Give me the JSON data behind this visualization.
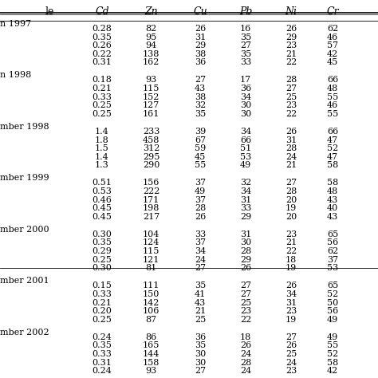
{
  "columns": [
    "le",
    "Cd",
    "Zn",
    "Cu",
    "Pb",
    "Ni",
    "Cr"
  ],
  "col_headers": [
    "le",
    "Cd",
    "Zn",
    "Cu",
    "Pb",
    "Ni",
    "Cr"
  ],
  "sections": [
    {
      "label": "n 1997",
      "rows": [
        [
          "",
          "0.28",
          "82",
          "26",
          "16",
          "26",
          "62"
        ],
        [
          "",
          "0.35",
          "95",
          "31",
          "35",
          "29",
          "46"
        ],
        [
          "",
          "0.26",
          "94",
          "29",
          "27",
          "23",
          "57"
        ],
        [
          "",
          "0.22",
          "138",
          "38",
          "35",
          "21",
          "42"
        ],
        [
          "",
          "0.31",
          "162",
          "36",
          "33",
          "22",
          "45"
        ]
      ]
    },
    {
      "label": "n 1998",
      "rows": [
        [
          "",
          "0.18",
          "93",
          "27",
          "17",
          "28",
          "66"
        ],
        [
          "",
          "0.21",
          "115",
          "43",
          "36",
          "27",
          "48"
        ],
        [
          "",
          "0.33",
          "152",
          "38",
          "34",
          "25",
          "55"
        ],
        [
          "",
          "0.25",
          "127",
          "32",
          "30",
          "23",
          "46"
        ],
        [
          "",
          "0.25",
          "161",
          "35",
          "30",
          "22",
          "55"
        ]
      ]
    },
    {
      "label": "mber 1998",
      "rows": [
        [
          "",
          "1.4",
          "233",
          "39",
          "34",
          "26",
          "66"
        ],
        [
          "",
          "1.8",
          "458",
          "67",
          "66",
          "31",
          "47"
        ],
        [
          "",
          "1.5",
          "312",
          "59",
          "51",
          "28",
          "52"
        ],
        [
          "",
          "1.4",
          "295",
          "45",
          "53",
          "24",
          "47"
        ],
        [
          "",
          "1.3",
          "290",
          "55",
          "49",
          "21",
          "58"
        ]
      ]
    },
    {
      "label": "mber 1999",
      "rows": [
        [
          "",
          "0.51",
          "156",
          "37",
          "32",
          "27",
          "58"
        ],
        [
          "",
          "0.53",
          "222",
          "49",
          "34",
          "28",
          "48"
        ],
        [
          "",
          "0.46",
          "171",
          "37",
          "31",
          "20",
          "43"
        ],
        [
          "",
          "0.45",
          "198",
          "28",
          "33",
          "19",
          "40"
        ],
        [
          "",
          "0.45",
          "217",
          "26",
          "29",
          "20",
          "43"
        ]
      ]
    },
    {
      "label": "mber 2000",
      "rows": [
        [
          "",
          "0.30",
          "104",
          "33",
          "31",
          "23",
          "65"
        ],
        [
          "",
          "0.35",
          "124",
          "37",
          "30",
          "21",
          "56"
        ],
        [
          "",
          "0.29",
          "115",
          "34",
          "28",
          "22",
          "62"
        ],
        [
          "",
          "0.25",
          "121",
          "24",
          "29",
          "18",
          "37"
        ],
        [
          "",
          "0.30",
          "81",
          "27",
          "26",
          "19",
          "53"
        ]
      ]
    },
    {
      "label": "mber 2001",
      "rows": [
        [
          "",
          "0.15",
          "111",
          "35",
          "27",
          "26",
          "65"
        ],
        [
          "",
          "0.33",
          "150",
          "41",
          "27",
          "34",
          "52"
        ],
        [
          "",
          "0.21",
          "142",
          "43",
          "25",
          "31",
          "50"
        ],
        [
          "",
          "0.20",
          "106",
          "21",
          "23",
          "23",
          "56"
        ],
        [
          "",
          "0.25",
          "87",
          "25",
          "22",
          "19",
          "49"
        ]
      ]
    },
    {
      "label": "mber 2002",
      "rows": [
        [
          "",
          "0.24",
          "86",
          "36",
          "18",
          "27",
          "49"
        ],
        [
          "",
          "0.35",
          "165",
          "35",
          "26",
          "26",
          "55"
        ],
        [
          "",
          "0.33",
          "144",
          "30",
          "24",
          "25",
          "52"
        ],
        [
          "",
          "0.31",
          "158",
          "30",
          "28",
          "24",
          "58"
        ],
        [
          "",
          "0.24",
          "93",
          "27",
          "24",
          "23",
          "42"
        ]
      ]
    }
  ],
  "bg_color": "#ffffff",
  "text_color": "#000000",
  "header_fontsize": 9,
  "data_fontsize": 8,
  "section_label_fontsize": 8
}
